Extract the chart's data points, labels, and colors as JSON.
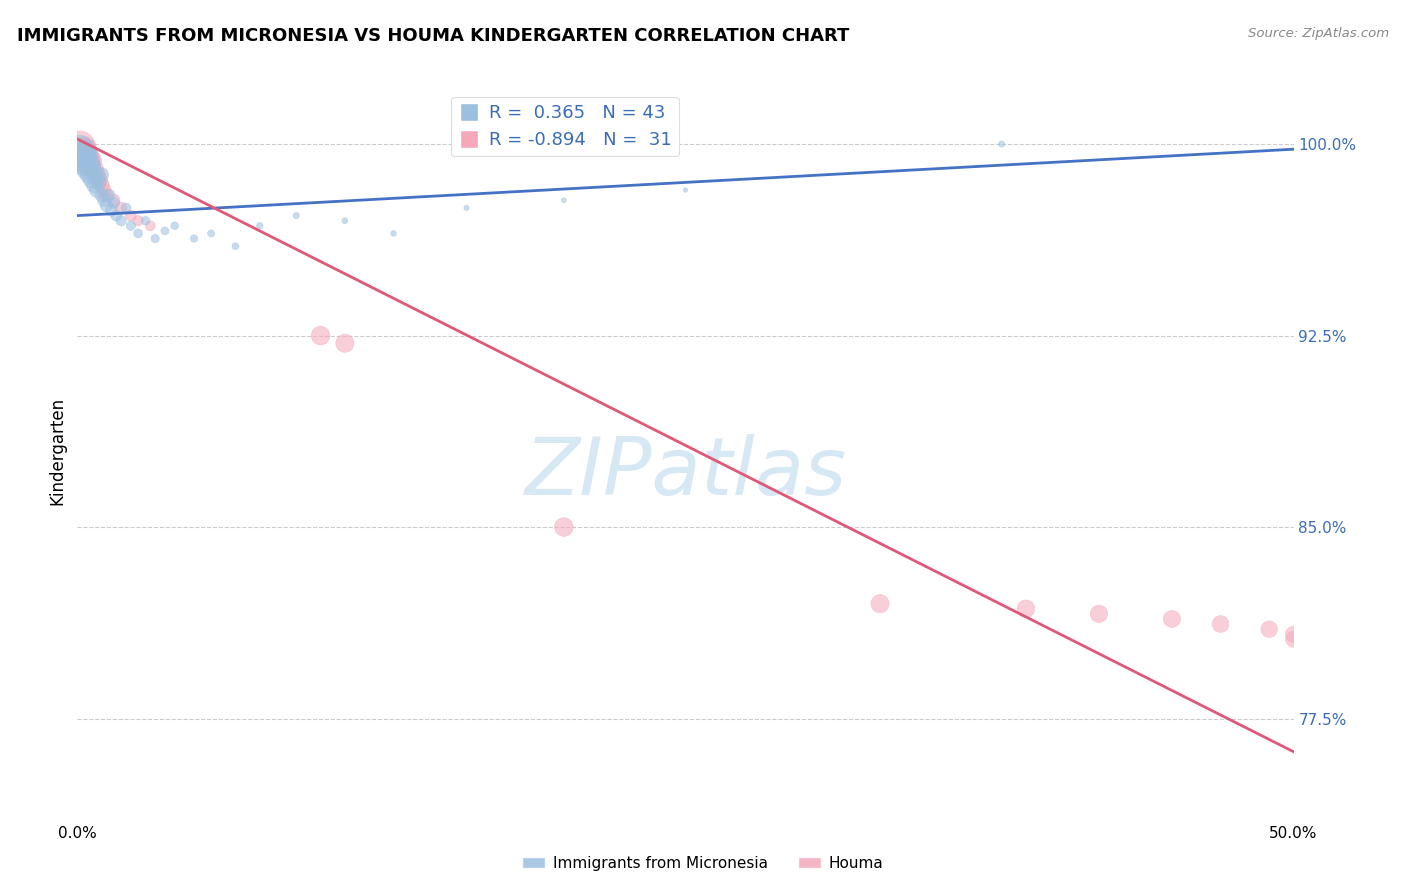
{
  "title": "IMMIGRANTS FROM MICRONESIA VS HOUMA KINDERGARTEN CORRELATION CHART",
  "source": "Source: ZipAtlas.com",
  "ylabel": "Kindergarten",
  "xmin": 0.0,
  "xmax": 0.5,
  "ymin": 0.735,
  "ymax": 1.025,
  "yticks": [
    0.775,
    0.85,
    0.925,
    1.0
  ],
  "ytick_labels": [
    "77.5%",
    "85.0%",
    "92.5%",
    "100.0%"
  ],
  "xticks": [
    0.0,
    0.1,
    0.2,
    0.3,
    0.4,
    0.5
  ],
  "xtick_labels": [
    "0.0%",
    "",
    "",
    "",
    "",
    "50.0%"
  ],
  "blue_color": "#9BBFE0",
  "pink_color": "#F4A8BA",
  "blue_line_color": "#4472C4",
  "pink_line_color": "#E05878",
  "watermark": "ZIPatlas",
  "watermark_color": "#D0E4F4",
  "blue_x": [
    0.001,
    0.002,
    0.002,
    0.003,
    0.003,
    0.004,
    0.004,
    0.005,
    0.005,
    0.006,
    0.006,
    0.007,
    0.007,
    0.008,
    0.008,
    0.009,
    0.01,
    0.01,
    0.011,
    0.012,
    0.013,
    0.014,
    0.015,
    0.016,
    0.018,
    0.02,
    0.022,
    0.025,
    0.028,
    0.032,
    0.036,
    0.04,
    0.048,
    0.055,
    0.065,
    0.075,
    0.09,
    0.11,
    0.13,
    0.16,
    0.2,
    0.25,
    0.38
  ],
  "blue_y": [
    0.998,
    0.996,
    0.994,
    0.997,
    0.992,
    0.995,
    0.99,
    0.993,
    0.988,
    0.991,
    0.986,
    0.989,
    0.984,
    0.987,
    0.982,
    0.985,
    0.988,
    0.98,
    0.978,
    0.976,
    0.98,
    0.974,
    0.977,
    0.972,
    0.97,
    0.975,
    0.968,
    0.965,
    0.97,
    0.963,
    0.966,
    0.968,
    0.963,
    0.965,
    0.96,
    0.968,
    0.972,
    0.97,
    0.965,
    0.975,
    0.978,
    0.982,
    1.0
  ],
  "blue_sizes": [
    400,
    350,
    300,
    280,
    260,
    240,
    220,
    200,
    180,
    160,
    150,
    140,
    130,
    120,
    110,
    100,
    100,
    90,
    85,
    80,
    75,
    70,
    65,
    60,
    55,
    50,
    45,
    40,
    38,
    35,
    32,
    30,
    28,
    26,
    24,
    22,
    20,
    18,
    16,
    14,
    12,
    10,
    20
  ],
  "pink_x": [
    0.001,
    0.002,
    0.002,
    0.003,
    0.003,
    0.004,
    0.005,
    0.005,
    0.006,
    0.007,
    0.008,
    0.009,
    0.01,
    0.011,
    0.012,
    0.015,
    0.018,
    0.022,
    0.025,
    0.03,
    0.1,
    0.11,
    0.2,
    0.33,
    0.39,
    0.42,
    0.45,
    0.47,
    0.49,
    0.5,
    0.5
  ],
  "pink_y": [
    0.999,
    0.997,
    0.995,
    0.998,
    0.993,
    0.996,
    0.994,
    0.991,
    0.993,
    0.99,
    0.988,
    0.986,
    0.984,
    0.982,
    0.98,
    0.978,
    0.975,
    0.972,
    0.97,
    0.968,
    0.925,
    0.922,
    0.85,
    0.82,
    0.818,
    0.816,
    0.814,
    0.812,
    0.81,
    0.808,
    0.806
  ],
  "pink_sizes": [
    500,
    400,
    350,
    300,
    280,
    260,
    240,
    220,
    200,
    180,
    160,
    140,
    120,
    100,
    90,
    80,
    70,
    60,
    55,
    50,
    180,
    170,
    180,
    170,
    160,
    155,
    150,
    145,
    140,
    135,
    130
  ],
  "blue_line_x": [
    0.0,
    0.5
  ],
  "blue_line_y": [
    0.972,
    0.998
  ],
  "pink_line_x": [
    0.0,
    0.5
  ],
  "pink_line_y": [
    1.002,
    0.762
  ]
}
